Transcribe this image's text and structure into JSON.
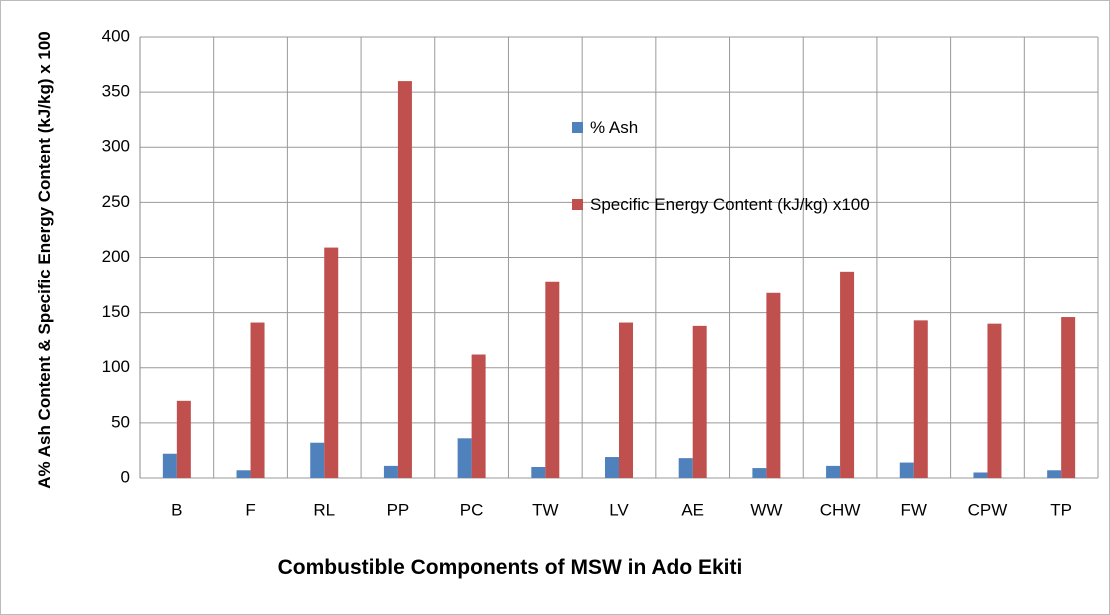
{
  "chart_data": {
    "type": "bar",
    "y_label": "A% Ash Content & Specific Energy Content (kJ/kg) x 100",
    "x_label": "Combustible Components of MSW in Ado Ekiti",
    "categories": [
      "B",
      "F",
      "RL",
      "PP",
      "PC",
      "TW",
      "LV",
      "AE",
      "WW",
      "CHW",
      "FW",
      "CPW",
      "TP"
    ],
    "series": [
      {
        "name": "% Ash",
        "color": "#4f81bd",
        "values": [
          22,
          7,
          32,
          11,
          36,
          10,
          19,
          18,
          9,
          11,
          14,
          5,
          7
        ]
      },
      {
        "name": "Specific Energy Content (kJ/kg) x100",
        "color": "#c0504d",
        "values": [
          70,
          141,
          209,
          360,
          112,
          178,
          141,
          138,
          168,
          187,
          143,
          140,
          146
        ]
      }
    ],
    "ylim": [
      0,
      400
    ],
    "yticks": [
      0,
      50,
      100,
      150,
      200,
      250,
      300,
      350,
      400
    ],
    "grid": true
  }
}
